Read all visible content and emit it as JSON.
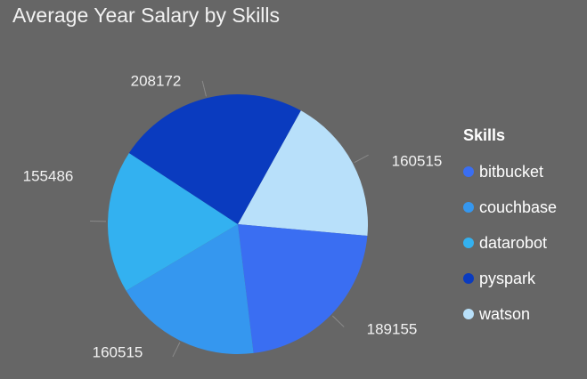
{
  "chart_data": {
    "type": "pie",
    "title": "Average Year Salary by Skills",
    "legend": {
      "title": "Skills",
      "position": "right"
    },
    "slices": [
      {
        "label": "watson",
        "value": 160515,
        "color": "#b8e0fa"
      },
      {
        "label": "bitbucket",
        "value": 189155,
        "color": "#3a6ef2"
      },
      {
        "label": "couchbase",
        "value": 160515,
        "color": "#3597ef"
      },
      {
        "label": "datarobot",
        "value": 155486,
        "color": "#33b1f0"
      },
      {
        "label": "pyspark",
        "value": 208172,
        "color": "#0a3bbf"
      }
    ],
    "legend_order": [
      "bitbucket",
      "couchbase",
      "datarobot",
      "pyspark",
      "watson"
    ],
    "start_angle_deg": 29,
    "value_labels": [
      "160515",
      "189155",
      "160515",
      "155486",
      "208172"
    ]
  }
}
